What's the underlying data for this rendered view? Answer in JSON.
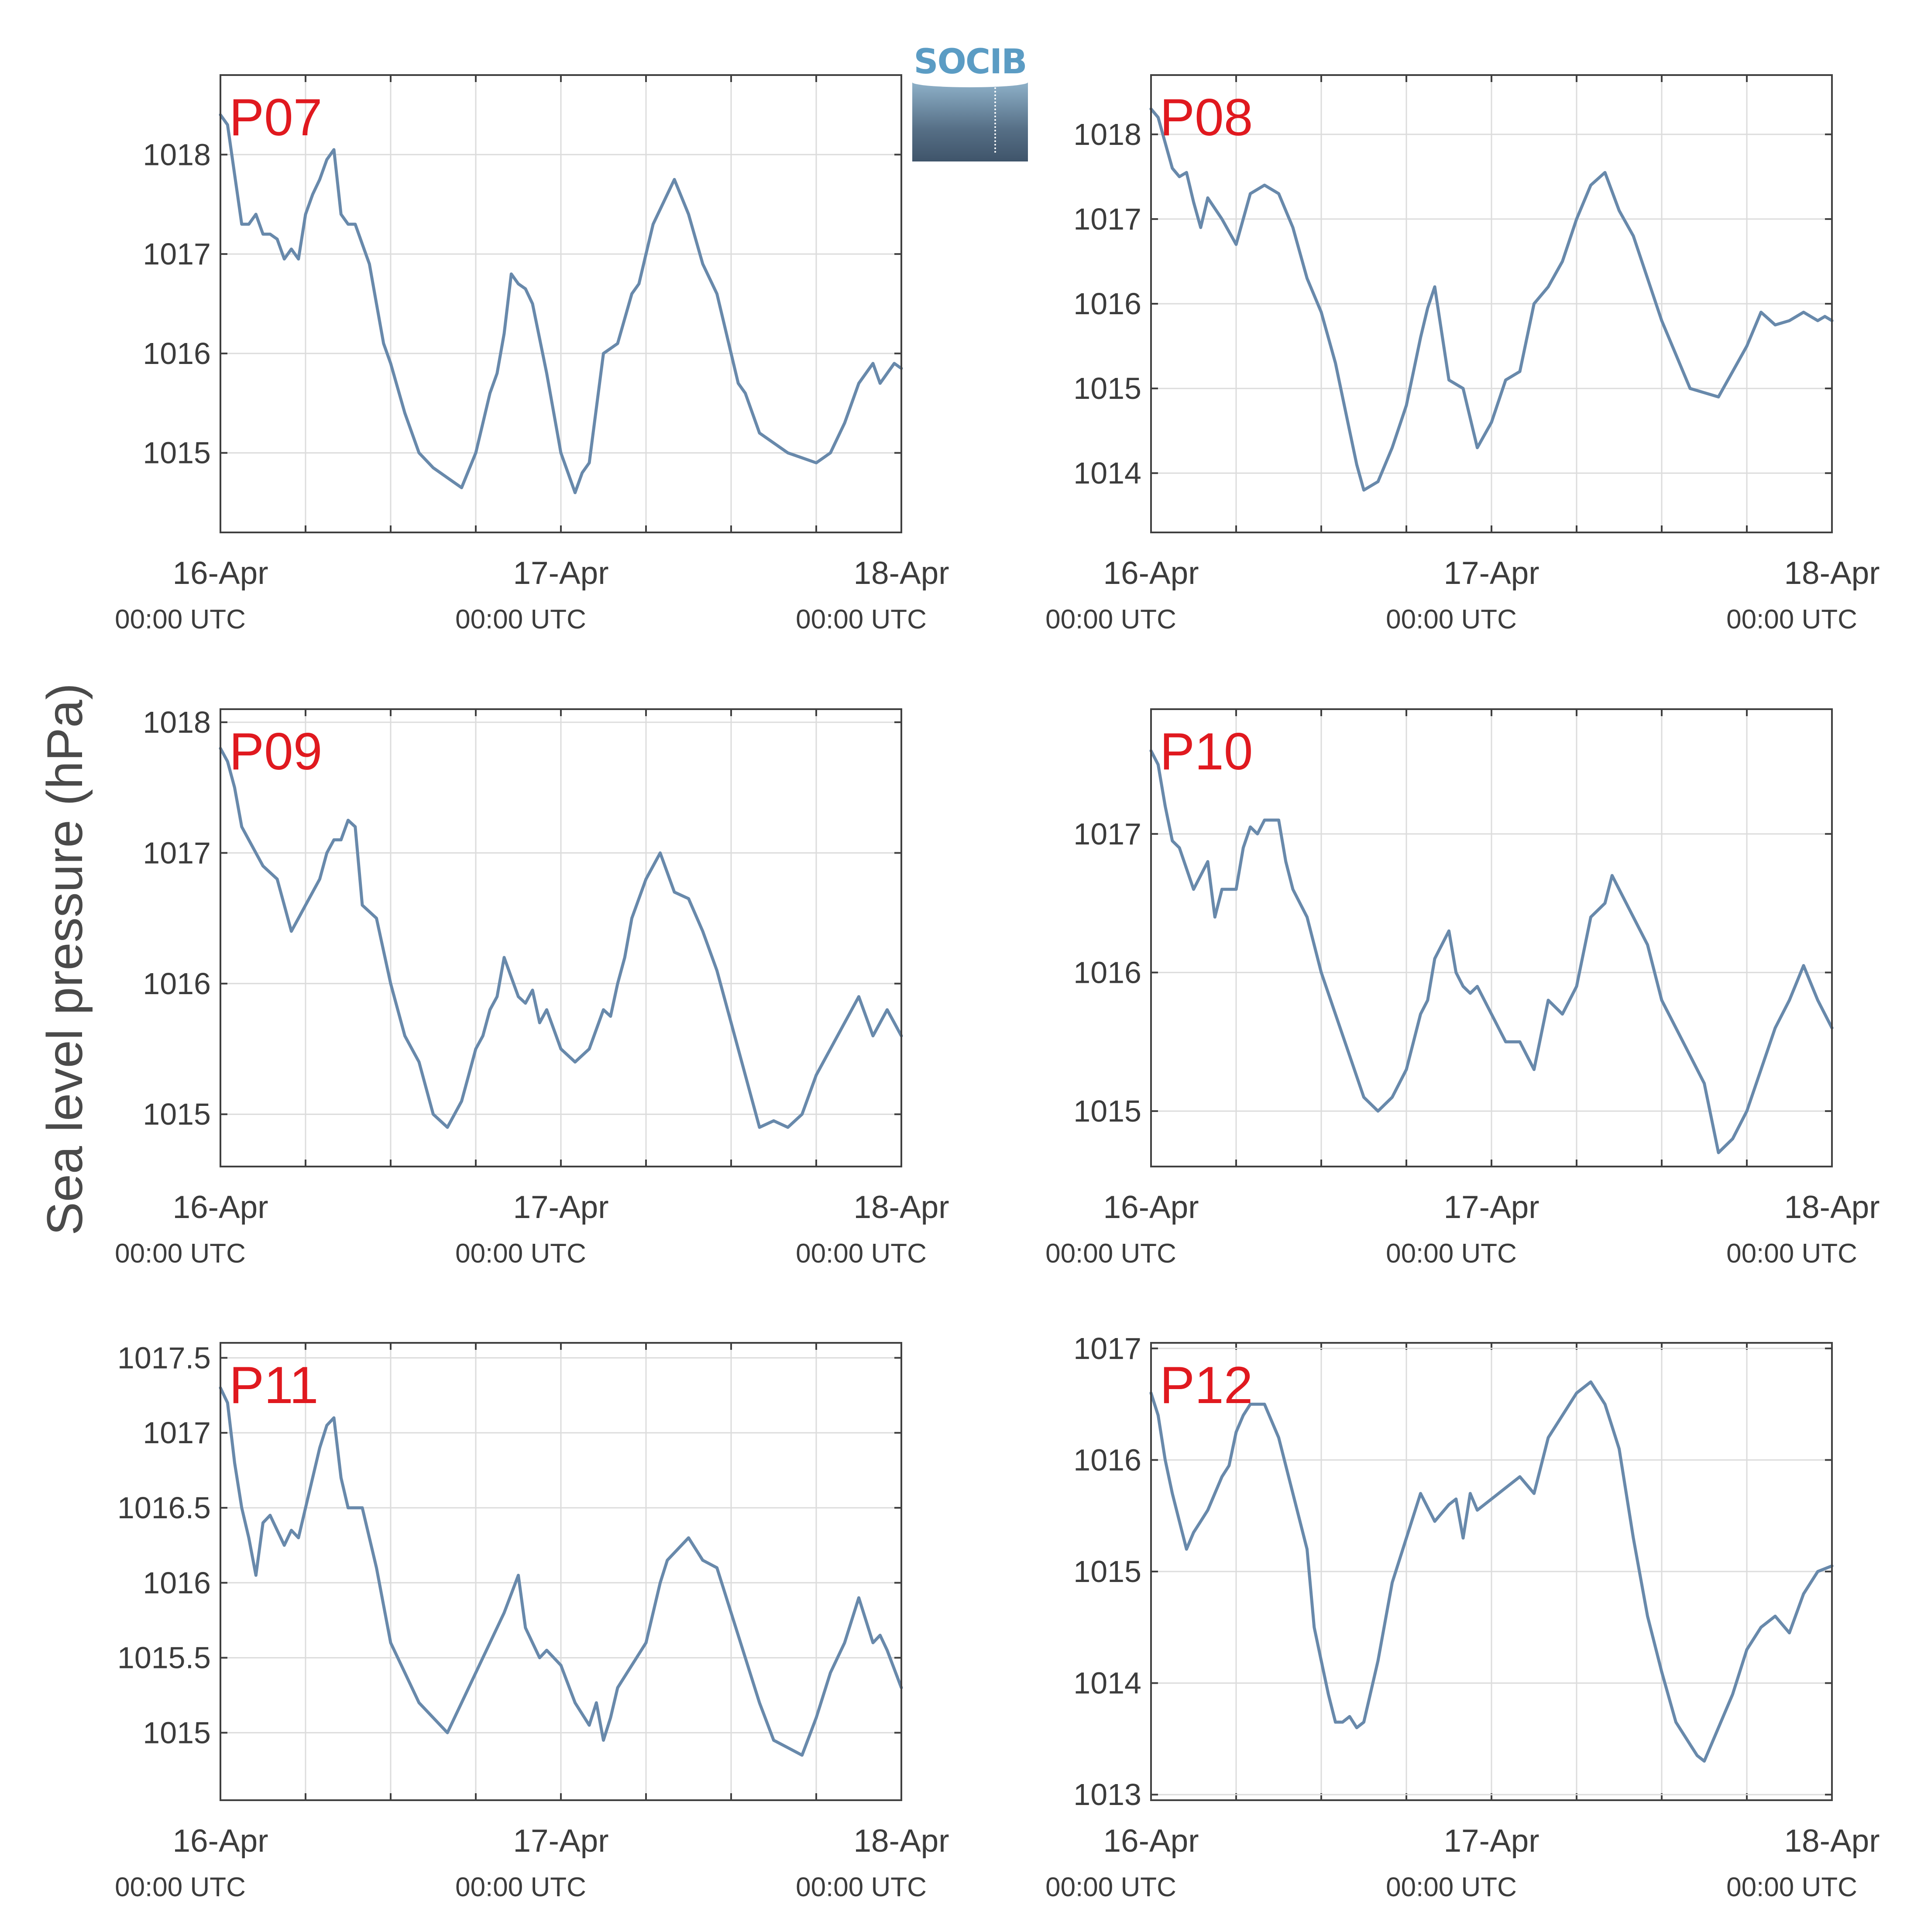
{
  "ylabel": "Sea level pressure (hPa)",
  "logo": {
    "text": "SOCIB"
  },
  "colors": {
    "line": "#6889ab",
    "station_label": "#e0191f",
    "grid": "#dcdcdc",
    "axis": "#404040",
    "text": "#3c3c3c"
  },
  "chart_data": [
    {
      "type": "line",
      "title": "P07",
      "x_ticks": [
        "16-Apr",
        "17-Apr",
        "18-Apr"
      ],
      "x_tick_sublabel": "00:00 UTC",
      "x_range_hours": [
        0,
        48
      ],
      "ylim": [
        1014.2,
        1018.8
      ],
      "y_ticks": [
        1015,
        1016,
        1017,
        1018
      ],
      "y_tick_labels": [
        "1015",
        "1016",
        "1017",
        "1018"
      ],
      "x_hours": [
        0,
        0.5,
        1,
        1.5,
        2,
        2.5,
        3,
        3.5,
        4,
        4.5,
        5,
        5.5,
        6,
        6.5,
        7,
        7.5,
        8,
        8.5,
        9,
        9.5,
        10,
        10.5,
        11,
        11.5,
        12,
        13,
        14,
        15,
        16,
        17,
        18,
        18.5,
        19,
        19.5,
        20,
        20.5,
        21,
        21.5,
        22,
        23,
        24,
        24.5,
        25,
        25.5,
        26,
        27,
        28,
        29,
        29.5,
        30,
        30.5,
        31,
        32,
        33,
        34,
        35,
        35.5,
        36,
        36.5,
        37,
        38,
        39,
        40,
        41,
        42,
        42.5,
        43,
        44,
        45,
        46,
        46.5,
        47,
        47.5,
        48
      ],
      "values": [
        1018.4,
        1018.3,
        1017.8,
        1017.3,
        1017.3,
        1017.4,
        1017.2,
        1017.2,
        1017.15,
        1016.95,
        1017.05,
        1016.95,
        1017.4,
        1017.6,
        1017.75,
        1017.95,
        1018.05,
        1017.4,
        1017.3,
        1017.3,
        1017.1,
        1016.9,
        1016.5,
        1016.1,
        1015.9,
        1015.4,
        1015.0,
        1014.85,
        1014.75,
        1014.65,
        1015.0,
        1015.3,
        1015.6,
        1015.8,
        1016.2,
        1016.8,
        1016.7,
        1016.65,
        1016.5,
        1015.8,
        1015.0,
        1014.8,
        1014.6,
        1014.8,
        1014.9,
        1016.0,
        1016.1,
        1016.6,
        1016.7,
        1017.0,
        1017.3,
        1017.45,
        1017.75,
        1017.4,
        1016.9,
        1016.6,
        1016.3,
        1016.0,
        1015.7,
        1015.6,
        1015.2,
        1015.1,
        1015.0,
        1014.95,
        1014.9,
        1014.95,
        1015.0,
        1015.3,
        1015.7,
        1015.9,
        1015.7,
        1015.8,
        1015.9,
        1015.85
      ]
    },
    {
      "type": "line",
      "title": "P08",
      "x_ticks": [
        "16-Apr",
        "17-Apr",
        "18-Apr"
      ],
      "x_tick_sublabel": "00:00 UTC",
      "x_range_hours": [
        0,
        48
      ],
      "ylim": [
        1013.3,
        1018.7
      ],
      "y_ticks": [
        1014,
        1015,
        1016,
        1017,
        1018
      ],
      "y_tick_labels": [
        "1014",
        "1015",
        "1016",
        "1017",
        "1018"
      ],
      "x_hours": [
        0,
        0.5,
        1,
        1.5,
        2,
        2.5,
        3,
        3.5,
        4,
        5,
        6,
        7,
        8,
        9,
        10,
        11,
        12,
        13,
        14,
        14.5,
        15,
        16,
        17,
        18,
        18.5,
        19,
        19.5,
        20,
        21,
        22,
        23,
        24,
        25,
        26,
        27,
        28,
        29,
        30,
        31,
        32,
        33,
        34,
        35,
        36,
        37,
        38,
        39,
        40,
        41,
        42,
        43,
        44,
        45,
        46,
        46.5,
        47,
        47.5,
        48
      ],
      "values": [
        1018.3,
        1018.2,
        1017.9,
        1017.6,
        1017.5,
        1017.55,
        1017.2,
        1016.9,
        1017.25,
        1017.0,
        1016.7,
        1017.3,
        1017.4,
        1017.3,
        1016.9,
        1016.3,
        1015.9,
        1015.3,
        1014.5,
        1014.1,
        1013.8,
        1013.9,
        1014.3,
        1014.8,
        1015.2,
        1015.6,
        1015.95,
        1016.2,
        1015.1,
        1015.0,
        1014.3,
        1014.6,
        1015.1,
        1015.2,
        1016.0,
        1016.2,
        1016.5,
        1017.0,
        1017.4,
        1017.55,
        1017.1,
        1016.8,
        1016.3,
        1015.8,
        1015.4,
        1015.0,
        1014.95,
        1014.9,
        1015.2,
        1015.5,
        1015.9,
        1015.75,
        1015.8,
        1015.9,
        1015.85,
        1015.8,
        1015.85,
        1015.8
      ]
    },
    {
      "type": "line",
      "title": "P09",
      "x_ticks": [
        "16-Apr",
        "17-Apr",
        "18-Apr"
      ],
      "x_tick_sublabel": "00:00 UTC",
      "x_range_hours": [
        0,
        48
      ],
      "ylim": [
        1014.6,
        1018.1
      ],
      "y_ticks": [
        1015,
        1016,
        1017,
        1018
      ],
      "y_tick_labels": [
        "1015",
        "1016",
        "1017",
        "1018"
      ],
      "x_hours": [
        0,
        0.5,
        1,
        1.5,
        2,
        3,
        4,
        4.5,
        5,
        5.5,
        6,
        7,
        7.5,
        8,
        8.5,
        9,
        9.5,
        10,
        11,
        12,
        13,
        14,
        15,
        16,
        16.5,
        17,
        17.5,
        18,
        18.5,
        19,
        19.5,
        20,
        21,
        21.5,
        22,
        22.5,
        23,
        24,
        25,
        26,
        27,
        27.5,
        28,
        28.5,
        29,
        30,
        31,
        32,
        33,
        34,
        35,
        36,
        37,
        38,
        39,
        40,
        41,
        42,
        43,
        44,
        45,
        46,
        46.5,
        47,
        47.5,
        48
      ],
      "values": [
        1017.8,
        1017.7,
        1017.5,
        1017.2,
        1017.1,
        1016.9,
        1016.8,
        1016.6,
        1016.4,
        1016.5,
        1016.6,
        1016.8,
        1017.0,
        1017.1,
        1017.1,
        1017.25,
        1017.2,
        1016.6,
        1016.5,
        1016.0,
        1015.6,
        1015.4,
        1015.0,
        1014.9,
        1015.0,
        1015.1,
        1015.3,
        1015.5,
        1015.6,
        1015.8,
        1015.9,
        1016.2,
        1015.9,
        1015.85,
        1015.95,
        1015.7,
        1015.8,
        1015.5,
        1015.4,
        1015.5,
        1015.8,
        1015.75,
        1016.0,
        1016.2,
        1016.5,
        1016.8,
        1017.0,
        1016.7,
        1016.65,
        1016.4,
        1016.1,
        1015.7,
        1015.3,
        1014.9,
        1014.95,
        1014.9,
        1015.0,
        1015.3,
        1015.5,
        1015.7,
        1015.9,
        1015.6,
        1015.7,
        1015.8,
        1015.7,
        1015.6
      ]
    },
    {
      "type": "line",
      "title": "P10",
      "x_ticks": [
        "16-Apr",
        "17-Apr",
        "18-Apr"
      ],
      "x_tick_sublabel": "00:00 UTC",
      "x_range_hours": [
        0,
        48
      ],
      "ylim": [
        1014.6,
        1017.9
      ],
      "y_ticks": [
        1015,
        1016,
        1017
      ],
      "y_tick_labels": [
        "1015",
        "1016",
        "1017"
      ],
      "x_hours": [
        0,
        0.5,
        1,
        1.5,
        2,
        3,
        4,
        4.5,
        5,
        5.5,
        6,
        6.5,
        7,
        7.5,
        8,
        9,
        9.5,
        10,
        11,
        12,
        13,
        14,
        15,
        16,
        17,
        18,
        18.5,
        19,
        19.5,
        20,
        21,
        21.5,
        22,
        22.5,
        23,
        24,
        25,
        26,
        27,
        28,
        29,
        29.5,
        30,
        31,
        32,
        32.5,
        33,
        34,
        35,
        36,
        37,
        38,
        39,
        40,
        41,
        42,
        43,
        44,
        45,
        46,
        47,
        48
      ],
      "values": [
        1017.6,
        1017.5,
        1017.2,
        1016.95,
        1016.9,
        1016.6,
        1016.8,
        1016.4,
        1016.6,
        1016.6,
        1016.6,
        1016.9,
        1017.05,
        1017.0,
        1017.1,
        1017.1,
        1016.8,
        1016.6,
        1016.4,
        1016.0,
        1015.7,
        1015.4,
        1015.1,
        1015.0,
        1015.1,
        1015.3,
        1015.5,
        1015.7,
        1015.8,
        1016.1,
        1016.3,
        1016.0,
        1015.9,
        1015.85,
        1015.9,
        1015.7,
        1015.5,
        1015.5,
        1015.3,
        1015.8,
        1015.7,
        1015.8,
        1015.9,
        1016.4,
        1016.5,
        1016.7,
        1016.6,
        1016.4,
        1016.2,
        1015.8,
        1015.6,
        1015.4,
        1015.2,
        1014.7,
        1014.8,
        1015.0,
        1015.3,
        1015.6,
        1015.8,
        1016.05,
        1015.8,
        1015.6
      ]
    },
    {
      "type": "line",
      "title": "P11",
      "x_ticks": [
        "16-Apr",
        "17-Apr",
        "18-Apr"
      ],
      "x_tick_sublabel": "00:00 UTC",
      "x_range_hours": [
        0,
        48
      ],
      "ylim": [
        1014.55,
        1017.6
      ],
      "y_ticks": [
        1015,
        1015.5,
        1016,
        1016.5,
        1017,
        1017.5
      ],
      "y_tick_labels": [
        "1015",
        "1015.5",
        "1016",
        "1016.5",
        "1017",
        "1017.5"
      ],
      "x_hours": [
        0,
        0.5,
        1,
        1.5,
        2,
        2.5,
        3,
        3.5,
        4,
        4.5,
        5,
        5.5,
        6,
        6.5,
        7,
        7.5,
        8,
        8.5,
        9,
        9.5,
        10,
        11,
        12,
        13,
        14,
        15,
        16,
        17,
        18,
        19,
        20,
        21,
        21.5,
        22,
        22.5,
        23,
        24,
        25,
        26,
        26.5,
        27,
        27.5,
        28,
        29,
        30,
        31,
        31.5,
        32,
        33,
        34,
        35,
        36,
        37,
        38,
        39,
        40,
        41,
        42,
        43,
        44,
        45,
        46,
        46.5,
        47,
        48
      ],
      "values": [
        1017.3,
        1017.2,
        1016.8,
        1016.5,
        1016.3,
        1016.05,
        1016.4,
        1016.45,
        1016.35,
        1016.25,
        1016.35,
        1016.3,
        1016.5,
        1016.7,
        1016.9,
        1017.05,
        1017.1,
        1016.7,
        1016.5,
        1016.5,
        1016.5,
        1016.1,
        1015.6,
        1015.4,
        1015.2,
        1015.1,
        1015.0,
        1015.2,
        1015.4,
        1015.6,
        1015.8,
        1016.05,
        1015.7,
        1015.6,
        1015.5,
        1015.55,
        1015.45,
        1015.2,
        1015.05,
        1015.2,
        1014.95,
        1015.1,
        1015.3,
        1015.45,
        1015.6,
        1016.0,
        1016.15,
        1016.2,
        1016.3,
        1016.15,
        1016.1,
        1015.8,
        1015.5,
        1015.2,
        1014.95,
        1014.9,
        1014.85,
        1015.1,
        1015.4,
        1015.6,
        1015.9,
        1015.6,
        1015.65,
        1015.55,
        1015.3
      ]
    },
    {
      "type": "line",
      "title": "P12",
      "x_ticks": [
        "16-Apr",
        "17-Apr",
        "18-Apr"
      ],
      "x_tick_sublabel": "00:00 UTC",
      "x_range_hours": [
        0,
        48
      ],
      "ylim": [
        1012.95,
        1017.05
      ],
      "y_ticks": [
        1013,
        1014,
        1015,
        1016,
        1017
      ],
      "y_tick_labels": [
        "1013",
        "1014",
        "1015",
        "1016",
        "1017"
      ],
      "x_hours": [
        0,
        0.5,
        1,
        1.5,
        2,
        2.5,
        3,
        3.5,
        4,
        5,
        5.5,
        6,
        6.5,
        7,
        8,
        9,
        10,
        11,
        11.5,
        12,
        12.5,
        13,
        13.5,
        14,
        14.5,
        15,
        16,
        17,
        18,
        19,
        20,
        21,
        21.5,
        22,
        22.5,
        23,
        23.5,
        24,
        25,
        26,
        27,
        28,
        29,
        30,
        31,
        32,
        32.5,
        33,
        34,
        35,
        36,
        37,
        38,
        38.5,
        39,
        40,
        41,
        42,
        43,
        44,
        45,
        46,
        47,
        48
      ],
      "values": [
        1016.6,
        1016.4,
        1016.0,
        1015.7,
        1015.45,
        1015.2,
        1015.35,
        1015.45,
        1015.55,
        1015.85,
        1015.95,
        1016.25,
        1016.4,
        1016.5,
        1016.5,
        1016.2,
        1015.7,
        1015.2,
        1014.5,
        1014.2,
        1013.9,
        1013.65,
        1013.65,
        1013.7,
        1013.6,
        1013.65,
        1014.2,
        1014.9,
        1015.3,
        1015.7,
        1015.45,
        1015.6,
        1015.65,
        1015.3,
        1015.7,
        1015.55,
        1015.6,
        1015.65,
        1015.75,
        1015.85,
        1015.7,
        1016.2,
        1016.4,
        1016.6,
        1016.7,
        1016.5,
        1016.3,
        1016.1,
        1015.3,
        1014.6,
        1014.1,
        1013.65,
        1013.45,
        1013.35,
        1013.3,
        1013.6,
        1013.9,
        1014.3,
        1014.5,
        1014.6,
        1014.45,
        1014.8,
        1015.0,
        1015.05
      ]
    }
  ]
}
